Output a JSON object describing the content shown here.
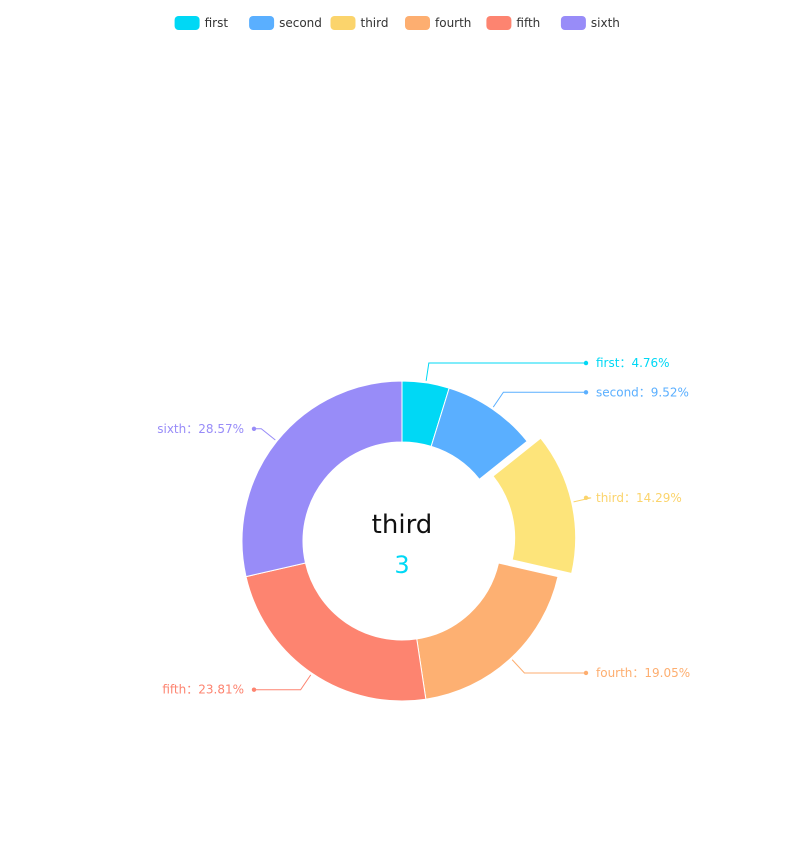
{
  "chart_data": {
    "type": "pie",
    "subtype": "donut",
    "legend_position": "top-center",
    "label_separator": "：",
    "categories": [
      "first",
      "second",
      "third",
      "fourth",
      "fifth",
      "sixth"
    ],
    "values": [
      1,
      2,
      3,
      4,
      5,
      6
    ],
    "percent_labels": [
      "4.76%",
      "9.52%",
      "14.29%",
      "19.05%",
      "23.81%",
      "28.57%"
    ],
    "colors": [
      "#00d8f5",
      "#5aafff",
      "#fbd46c",
      "#fdae70",
      "#fd8470",
      "#988cf8"
    ],
    "slice_colors": [
      "#00d8f5",
      "#5aafff",
      "#fde47a",
      "#fdb072",
      "#fd8470",
      "#988cf8"
    ],
    "highlighted": {
      "category": "third",
      "value": "3",
      "value_color": "#00d8f5"
    }
  }
}
